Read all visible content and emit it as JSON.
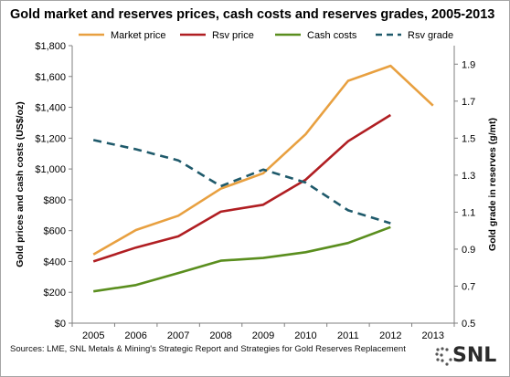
{
  "title": "Gold market and reserves prices, cash costs and reserves grades, 2005-2013",
  "source": "Sources: LME, SNL Metals & Mining's Strategic Report and Strategies for Gold Reserves Replacement",
  "logo": {
    "text": "SNL",
    "icon": "snl-dots-logo-icon"
  },
  "colors": {
    "market": "#E8A040",
    "rsv": "#B01E22",
    "cash": "#5A8E1E",
    "grade": "#1F5A6B",
    "axis": "#7f7f7f"
  },
  "chart_data": {
    "type": "line",
    "x": [
      "2005",
      "2006",
      "2007",
      "2008",
      "2009",
      "2010",
      "2011",
      "2012",
      "2013"
    ],
    "ylabel": "Gold prices and cash costs (US$/oz)",
    "y2label": "Gold grade in reserves (g/mt)",
    "ylim": [
      0,
      1800
    ],
    "y2lim": [
      0.5,
      2.0
    ],
    "yticks": [
      "$0",
      "$200",
      "$400",
      "$600",
      "$800",
      "$1,000",
      "$1,200",
      "$1,400",
      "$1,600",
      "$1,800"
    ],
    "y2ticks": [
      "0.5",
      "0.7",
      "0.9",
      "1.1",
      "1.3",
      "1.5",
      "1.7",
      "1.9"
    ],
    "legend_position": "top",
    "grid": false,
    "series": [
      {
        "name": "Market price",
        "axis": "left",
        "style": "solid",
        "values": [
          445,
          604,
          697,
          872,
          972,
          1225,
          1572,
          1669,
          1411
        ]
      },
      {
        "name": "Rsv price",
        "axis": "left",
        "style": "solid",
        "values": [
          400,
          490,
          563,
          723,
          768,
          930,
          1180,
          1350,
          null
        ]
      },
      {
        "name": "Cash costs",
        "axis": "left",
        "style": "solid",
        "values": [
          206,
          247,
          325,
          405,
          423,
          460,
          520,
          623,
          null
        ]
      },
      {
        "name": "Rsv grade",
        "axis": "right",
        "style": "dashed",
        "values": [
          1.49,
          1.44,
          1.38,
          1.24,
          1.33,
          1.26,
          1.11,
          1.04,
          null
        ]
      }
    ]
  }
}
